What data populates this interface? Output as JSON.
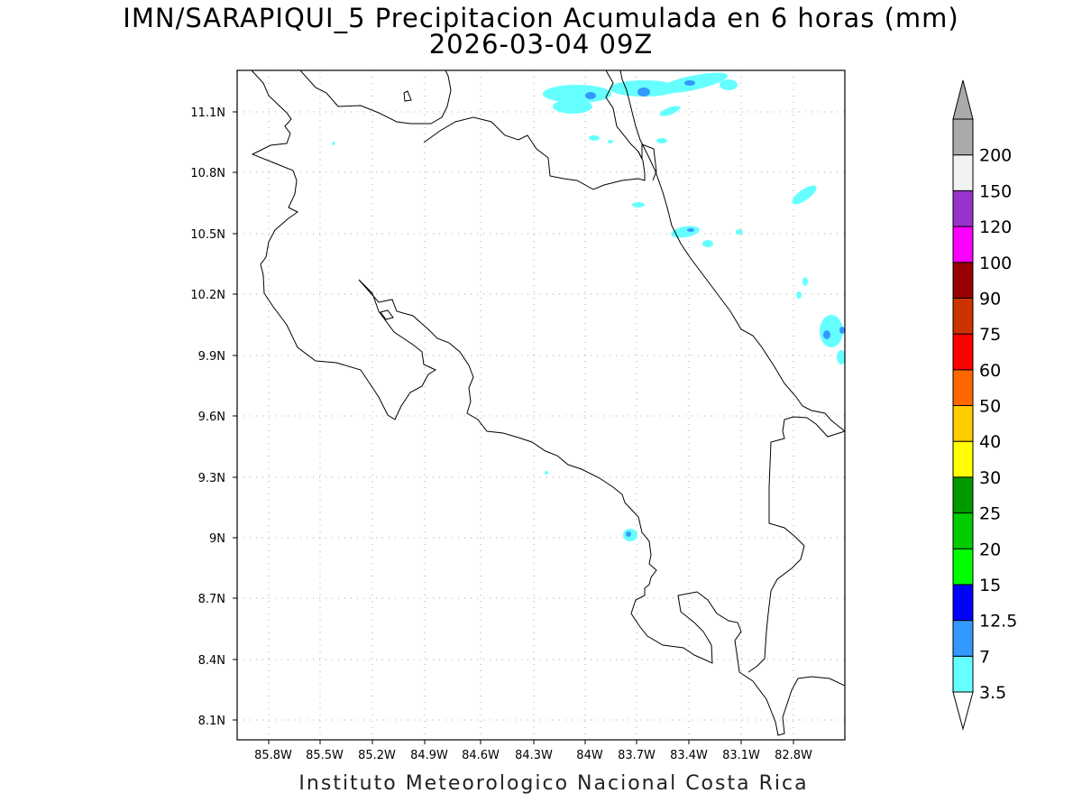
{
  "title": {
    "line1": "IMN/SARAPIQUI_5 Precipitacion Acumulada en 6 horas (mm)",
    "line2": "2026-03-04 09Z"
  },
  "credit": "Instituto Meteorologico Nacional Costa Rica",
  "map": {
    "lon_ticks": [
      "85.8W",
      "85.5W",
      "85.2W",
      "84.9W",
      "84.6W",
      "84.3W",
      "84W",
      "83.7W",
      "83.4W",
      "83.1W",
      "82.8W"
    ],
    "lat_ticks": [
      "11.1N",
      "10.8N",
      "10.5N",
      "10.2N",
      "9.9N",
      "9.6N",
      "9.3N",
      "9N",
      "8.7N",
      "8.4N",
      "8.1N"
    ],
    "grid": "dotted"
  },
  "colorbar": {
    "labels": [
      "3.5",
      "7",
      "12.5",
      "15",
      "20",
      "25",
      "30",
      "40",
      "50",
      "60",
      "75",
      "90",
      "100",
      "120",
      "150",
      "200"
    ],
    "colors": [
      "#66ffff",
      "#3399ff",
      "#0000ff",
      "#00ff00",
      "#00cc00",
      "#009900",
      "#ffff00",
      "#ffcc00",
      "#ff6600",
      "#ff0000",
      "#cc3300",
      "#990000",
      "#ff00ff",
      "#9933cc",
      "#f2f2f2",
      "#aaaaaa"
    ]
  }
}
